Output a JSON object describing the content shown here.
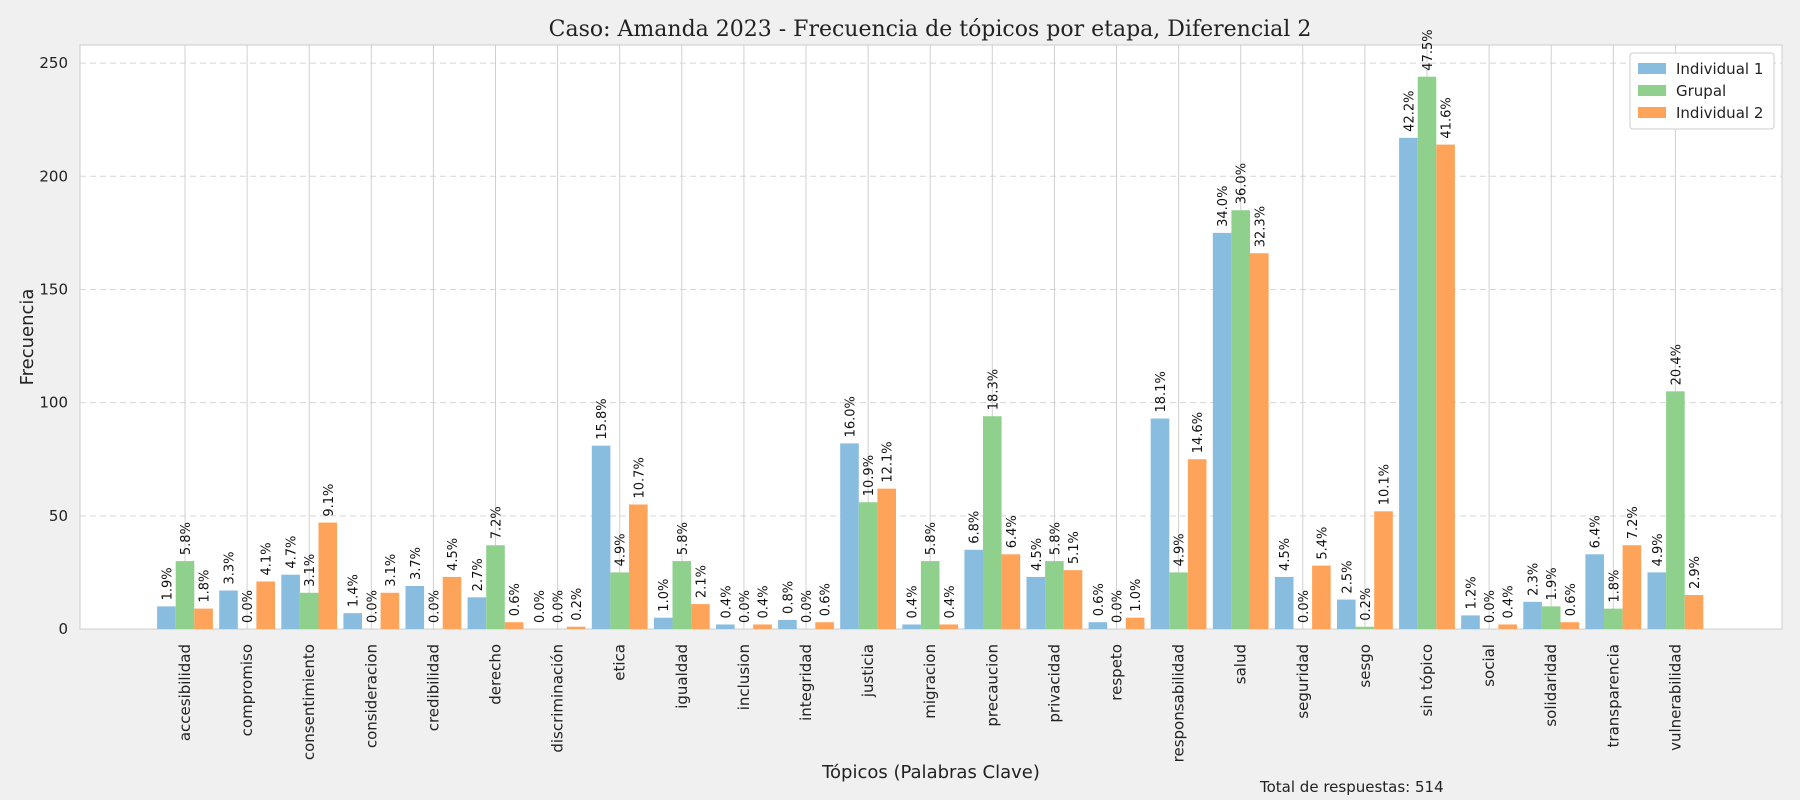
{
  "chart_data": {
    "type": "bar",
    "title": "Caso: Amanda 2023 - Frecuencia de tópicos por etapa, Diferencial 2",
    "xlabel": "Tópicos (Palabras Clave)",
    "ylabel": "Frecuencia",
    "ylim": [
      0,
      258
    ],
    "yticks": [
      0,
      50,
      100,
      150,
      200,
      250
    ],
    "grid": true,
    "legend_position": "top-right",
    "footnote": "Total de respuestas: 514",
    "categories": [
      "accesibilidad",
      "compromiso",
      "consentimiento",
      "consideracion",
      "credibilidad",
      "derecho",
      "discriminación",
      "etica",
      "igualdad",
      "inclusion",
      "integridad",
      "justicia",
      "migracion",
      "precaucion",
      "privacidad",
      "respeto",
      "responsabilidad",
      "salud",
      "seguridad",
      "sesgo",
      "sin tópico",
      "social",
      "solidaridad",
      "transparencia",
      "vulnerabilidad"
    ],
    "series": [
      {
        "name": "Individual 1",
        "color": "#88bde0",
        "values": [
          10,
          17,
          24,
          7,
          19,
          14,
          0,
          81,
          5,
          2,
          4,
          82,
          2,
          35,
          23,
          3,
          93,
          175,
          23,
          13,
          217,
          6,
          12,
          33,
          25
        ],
        "labels": [
          "1.9%",
          "3.3%",
          "4.7%",
          "1.4%",
          "3.7%",
          "2.7%",
          "0.0%",
          "15.8%",
          "1.0%",
          "0.4%",
          "0.8%",
          "16.0%",
          "0.4%",
          "6.8%",
          "4.5%",
          "0.6%",
          "18.1%",
          "34.0%",
          "4.5%",
          "2.5%",
          "42.2%",
          "1.2%",
          "2.3%",
          "6.4%",
          "4.9%"
        ]
      },
      {
        "name": "Grupal",
        "color": "#8fd18c",
        "values": [
          30,
          0,
          16,
          0,
          0,
          37,
          0,
          25,
          30,
          0,
          0,
          56,
          30,
          94,
          30,
          0,
          25,
          185,
          0,
          1,
          244,
          0,
          10,
          9,
          105
        ],
        "labels": [
          "5.8%",
          "0.0%",
          "3.1%",
          "0.0%",
          "0.0%",
          "7.2%",
          "0.0%",
          "4.9%",
          "5.8%",
          "0.0%",
          "0.0%",
          "10.9%",
          "5.8%",
          "18.3%",
          "5.8%",
          "0.0%",
          "4.9%",
          "36.0%",
          "0.0%",
          "0.2%",
          "47.5%",
          "0.0%",
          "1.9%",
          "1.8%",
          "20.4%"
        ]
      },
      {
        "name": "Individual 2",
        "color": "#fda35a",
        "values": [
          9,
          21,
          47,
          16,
          23,
          3,
          1,
          55,
          11,
          2,
          3,
          62,
          2,
          33,
          26,
          5,
          75,
          166,
          28,
          52,
          214,
          2,
          3,
          37,
          15
        ],
        "labels": [
          "1.8%",
          "4.1%",
          "9.1%",
          "3.1%",
          "4.5%",
          "0.6%",
          "0.2%",
          "10.7%",
          "2.1%",
          "0.4%",
          "0.6%",
          "12.1%",
          "0.4%",
          "6.4%",
          "5.1%",
          "1.0%",
          "14.6%",
          "32.3%",
          "5.4%",
          "10.1%",
          "41.6%",
          "0.4%",
          "0.6%",
          "7.2%",
          "2.9%"
        ]
      }
    ]
  }
}
